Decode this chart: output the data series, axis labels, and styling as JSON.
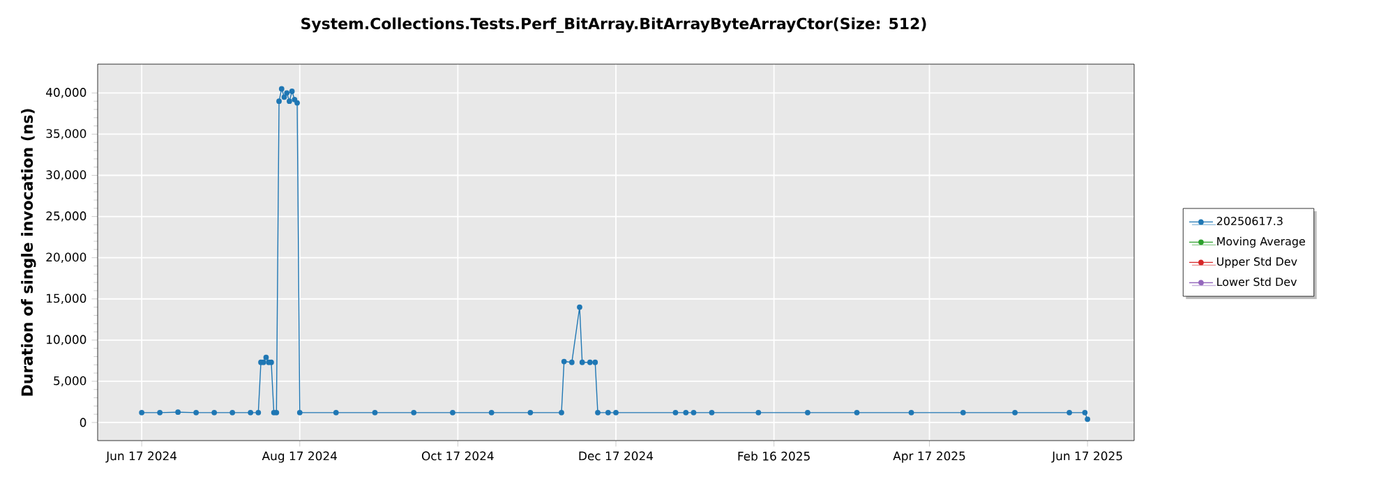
{
  "chart_data": {
    "type": "line",
    "title": "System.Collections.Tests.Perf_BitArray.BitArrayByteArrayCtor(Size: 512)",
    "ylabel": "Duration of single invocation (ns)",
    "x": [
      "2024-06-17",
      "2024-06-24",
      "2024-07-01",
      "2024-07-08",
      "2024-07-15",
      "2024-07-22",
      "2024-07-29",
      "2024-08-01",
      "2024-08-02",
      "2024-08-03",
      "2024-08-04",
      "2024-08-05",
      "2024-08-06",
      "2024-08-07",
      "2024-08-08",
      "2024-08-09",
      "2024-08-10",
      "2024-08-11",
      "2024-08-12",
      "2024-08-13",
      "2024-08-14",
      "2024-08-15",
      "2024-08-16",
      "2024-08-17",
      "2024-08-31",
      "2024-09-15",
      "2024-09-30",
      "2024-10-15",
      "2024-10-30",
      "2024-11-14",
      "2024-11-26",
      "2024-11-27",
      "2024-11-30",
      "2024-12-03",
      "2024-12-04",
      "2024-12-07",
      "2024-12-09",
      "2024-12-10",
      "2024-12-14",
      "2024-12-17",
      "2025-01-09",
      "2025-01-13",
      "2025-01-16",
      "2025-01-23",
      "2025-02-10",
      "2025-03-01",
      "2025-03-20",
      "2025-04-10",
      "2025-04-30",
      "2025-05-20",
      "2025-06-10",
      "2025-06-16",
      "2025-06-17"
    ],
    "series": [
      {
        "name": "20250617.3",
        "color": "#1f77b4",
        "values": [
          1200,
          1200,
          1250,
          1200,
          1200,
          1200,
          1200,
          1200,
          7300,
          7300,
          7900,
          7300,
          7300,
          1200,
          1200,
          39000,
          40500,
          39500,
          40000,
          39000,
          40200,
          39200,
          38800,
          1200,
          1200,
          1200,
          1200,
          1200,
          1200,
          1200,
          1200,
          7400,
          7300,
          14000,
          7300,
          7300,
          7300,
          1200,
          1200,
          1200,
          1200,
          1200,
          1200,
          1200,
          1200,
          1200,
          1200,
          1200,
          1200,
          1200,
          1200,
          1200,
          400
        ]
      },
      {
        "name": "Moving Average",
        "color": "#2ca02c",
        "values": [
          null,
          null,
          null,
          null,
          null,
          null,
          null,
          null,
          null,
          null,
          null,
          null,
          null,
          null,
          null,
          null,
          null,
          null,
          null,
          null,
          null,
          null,
          null,
          null,
          null,
          null,
          null,
          null,
          null,
          null,
          null,
          null,
          null,
          null,
          null,
          null,
          null,
          null,
          null,
          null,
          null,
          null,
          null,
          null,
          null,
          null,
          null,
          null,
          null,
          null,
          null,
          null,
          null
        ]
      },
      {
        "name": "Upper Std Dev",
        "color": "#d62728",
        "values": [
          null,
          null,
          null,
          null,
          null,
          null,
          null,
          null,
          null,
          null,
          null,
          null,
          null,
          null,
          null,
          null,
          null,
          null,
          null,
          null,
          null,
          null,
          null,
          null,
          null,
          null,
          null,
          null,
          null,
          null,
          null,
          null,
          null,
          null,
          null,
          null,
          null,
          null,
          null,
          null,
          null,
          null,
          null,
          null,
          null,
          null,
          null,
          null,
          null,
          null,
          null,
          null,
          null
        ]
      },
      {
        "name": "Lower Std Dev",
        "color": "#9467bd",
        "values": [
          null,
          null,
          null,
          null,
          null,
          null,
          null,
          null,
          null,
          null,
          null,
          null,
          null,
          null,
          null,
          null,
          null,
          null,
          null,
          null,
          null,
          null,
          null,
          null,
          null,
          null,
          null,
          null,
          null,
          null,
          null,
          null,
          null,
          null,
          null,
          null,
          null,
          null,
          null,
          null,
          null,
          null,
          null,
          null,
          null,
          null,
          null,
          null,
          null,
          null,
          null,
          null,
          null
        ]
      }
    ],
    "xlim": [
      "2024-05-31",
      "2025-07-05"
    ],
    "xticks": [
      {
        "value": "2024-06-17",
        "label": "Jun 17 2024"
      },
      {
        "value": "2024-08-17",
        "label": "Aug 17 2024"
      },
      {
        "value": "2024-10-17",
        "label": "Oct 17 2024"
      },
      {
        "value": "2024-12-17",
        "label": "Dec 17 2024"
      },
      {
        "value": "2025-02-16",
        "label": "Feb 16 2025"
      },
      {
        "value": "2025-04-17",
        "label": "Apr 17 2025"
      },
      {
        "value": "2025-06-17",
        "label": "Jun 17 2025"
      }
    ],
    "ylim": [
      -2200,
      43500
    ],
    "yticks": [
      0,
      {
        "value": 5000,
        "label": "5,000"
      },
      {
        "value": 10000,
        "label": "10,000"
      },
      {
        "value": 15000,
        "label": "15,000"
      },
      {
        "value": 20000,
        "label": "20,000"
      },
      {
        "value": 25000,
        "label": "25,000"
      },
      {
        "value": 30000,
        "label": "30,000"
      },
      {
        "value": 35000,
        "label": "35,000"
      },
      {
        "value": 40000,
        "label": "40,000"
      }
    ],
    "grid": true,
    "legend": "right",
    "marker": "circle",
    "line_style": "solid"
  }
}
